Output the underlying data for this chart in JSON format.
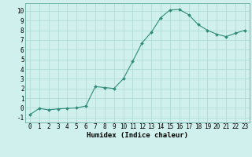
{
  "x": [
    0,
    1,
    2,
    3,
    4,
    5,
    6,
    7,
    8,
    9,
    10,
    11,
    12,
    13,
    14,
    15,
    16,
    17,
    18,
    19,
    20,
    21,
    22,
    23
  ],
  "y": [
    -0.7,
    -0.05,
    -0.2,
    -0.1,
    -0.05,
    0.0,
    0.2,
    2.2,
    2.1,
    2.0,
    3.0,
    4.8,
    6.7,
    7.8,
    9.3,
    10.1,
    10.15,
    9.6,
    8.6,
    8.0,
    7.6,
    7.35,
    7.7,
    8.0
  ],
  "line_color": "#2e8b7a",
  "marker_color": "#2e8b7a",
  "bg_color": "#cff0ec",
  "grid_color": "#aad8d0",
  "xlabel": "Humidex (Indice chaleur)",
  "xlim": [
    -0.5,
    23.5
  ],
  "ylim": [
    -1.5,
    10.8
  ],
  "yticks": [
    -1,
    0,
    1,
    2,
    3,
    4,
    5,
    6,
    7,
    8,
    9,
    10
  ],
  "xticks": [
    0,
    1,
    2,
    3,
    4,
    5,
    6,
    7,
    8,
    9,
    10,
    11,
    12,
    13,
    14,
    15,
    16,
    17,
    18,
    19,
    20,
    21,
    22,
    23
  ],
  "xlabel_fontsize": 6.5,
  "tick_fontsize": 5.5,
  "line_width": 0.8,
  "marker_size": 2.0
}
